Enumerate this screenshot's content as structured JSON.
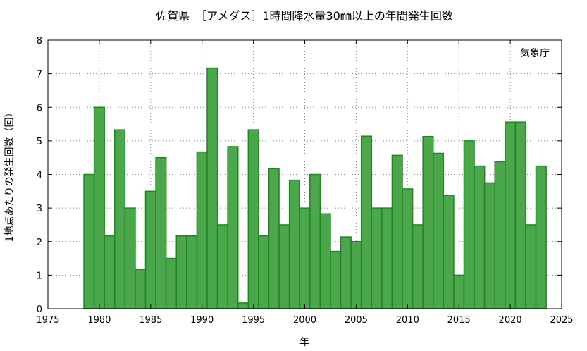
{
  "chart_data": {
    "type": "bar",
    "title": "佐賀県　［アメダス］1時間降水量30㎜以上の年間発生回数",
    "xlabel": "年",
    "ylabel": "1地点あたりの発生回数（回）",
    "source_label": "気象庁",
    "xlim": [
      1975,
      2025
    ],
    "ylim": [
      0,
      8
    ],
    "x_ticks": [
      1975,
      1980,
      1985,
      1990,
      1995,
      2000,
      2005,
      2010,
      2015,
      2020,
      2025
    ],
    "y_ticks": [
      0,
      1,
      2,
      3,
      4,
      5,
      6,
      7,
      8
    ],
    "grid": true,
    "bar_color": "#4ca64c",
    "bar_edge_color": "#1a8a1a",
    "x": [
      1979,
      1980,
      1981,
      1982,
      1983,
      1984,
      1985,
      1986,
      1987,
      1988,
      1989,
      1990,
      1991,
      1992,
      1993,
      1994,
      1995,
      1996,
      1997,
      1998,
      1999,
      2000,
      2001,
      2002,
      2003,
      2004,
      2005,
      2006,
      2007,
      2008,
      2009,
      2010,
      2011,
      2012,
      2013,
      2014,
      2015,
      2016,
      2017,
      2018,
      2019,
      2020,
      2021,
      2022,
      2023
    ],
    "values": [
      4.0,
      6.0,
      2.17,
      5.33,
      3.0,
      1.17,
      3.5,
      4.5,
      1.5,
      2.17,
      2.17,
      4.67,
      7.17,
      2.5,
      4.83,
      0.17,
      5.33,
      2.17,
      4.17,
      2.5,
      3.83,
      3.0,
      4.0,
      2.83,
      1.71,
      2.14,
      2.0,
      5.14,
      3.0,
      3.0,
      4.57,
      3.57,
      2.5,
      5.13,
      4.63,
      3.38,
      1.0,
      5.0,
      4.25,
      3.75,
      4.38,
      5.56,
      5.56,
      2.5,
      4.25
    ]
  }
}
